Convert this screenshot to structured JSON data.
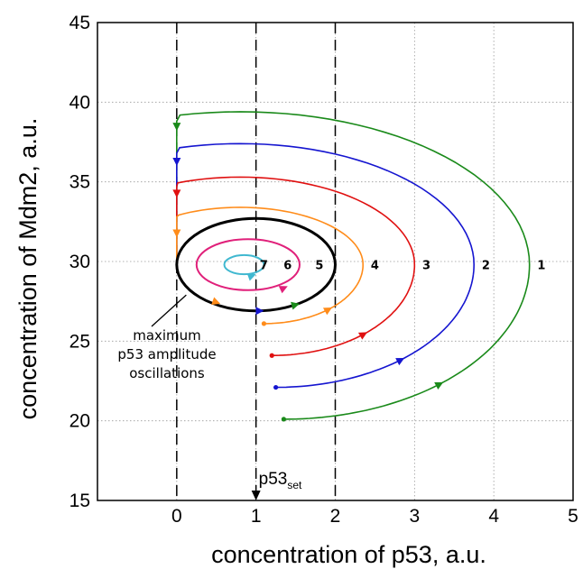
{
  "chart_data": {
    "type": "line",
    "title": "",
    "xlabel": "concentration of p53, a.u.",
    "ylabel": "concentration of Mdm2, a.u.",
    "xlim": [
      -1,
      5
    ],
    "ylim": [
      15,
      45
    ],
    "x_ticks": [
      0,
      1,
      2,
      3,
      4,
      5
    ],
    "y_ticks": [
      15,
      20,
      25,
      30,
      35,
      40,
      45
    ],
    "grid": "dotted",
    "set_point": {
      "label": "p53",
      "sub": "set",
      "x": 1
    },
    "dashed_verticals": [
      0,
      1,
      2
    ],
    "annotation": {
      "lines": [
        "maximum",
        "p53 amplitude",
        "oscillations"
      ],
      "points_to": {
        "x": 0.55,
        "y": 27.6
      }
    },
    "series": [
      {
        "label": "1",
        "color": "#1a8a1a",
        "start": [
          1.35,
          20.1
        ],
        "turn": [
          4.45,
          29.8
        ],
        "top": 39.4,
        "end": [
          0,
          38.8
        ],
        "label_at": [
          4.6,
          29.8
        ]
      },
      {
        "label": "2",
        "color": "#1515d0",
        "start": [
          1.25,
          22.1
        ],
        "turn": [
          3.75,
          29.8
        ],
        "top": 37.4,
        "end": [
          0,
          36.6
        ],
        "label_at": [
          3.9,
          29.8
        ]
      },
      {
        "label": "3",
        "color": "#e01010",
        "start": [
          1.2,
          24.1
        ],
        "turn": [
          3.0,
          29.8
        ],
        "top": 35.3,
        "end": [
          0,
          34.6
        ],
        "label_at": [
          3.15,
          29.8
        ]
      },
      {
        "label": "4",
        "color": "#ff8c1a",
        "start": [
          1.1,
          26.1
        ],
        "turn": [
          2.35,
          29.8
        ],
        "top": 33.4,
        "end": [
          0,
          32.1
        ],
        "label_at": [
          2.5,
          29.8
        ]
      },
      {
        "label": "5",
        "color": "#000000",
        "center": [
          1.0,
          29.8
        ],
        "rx": 1.0,
        "ry": 2.9,
        "label_at": [
          1.8,
          29.8
        ],
        "closed": true
      },
      {
        "label": "6",
        "color": "#e0207a",
        "center": [
          0.9,
          29.8
        ],
        "rx": 0.65,
        "ry": 1.6,
        "label_at": [
          1.4,
          29.8
        ],
        "closed": true
      },
      {
        "label": "7",
        "color": "#40b8d0",
        "center": [
          0.85,
          29.8
        ],
        "rx": 0.25,
        "ry": 0.6,
        "label_at": [
          1.1,
          29.8
        ],
        "closed": true
      }
    ]
  }
}
